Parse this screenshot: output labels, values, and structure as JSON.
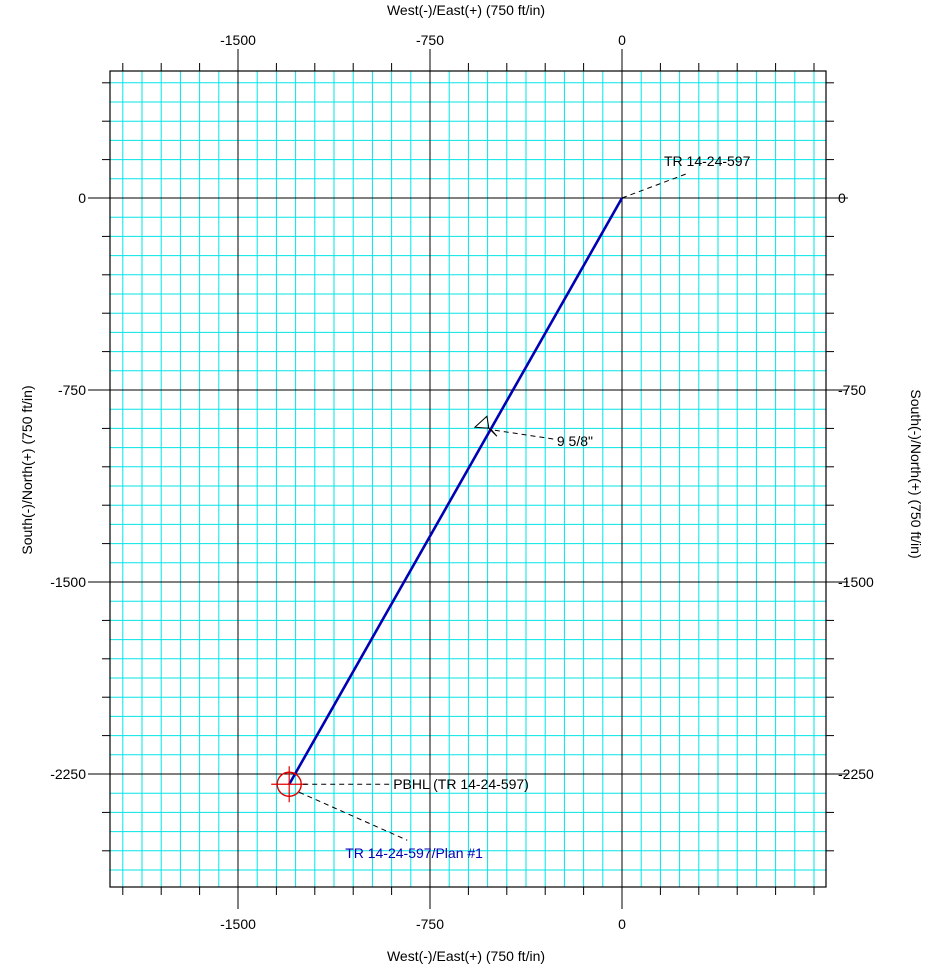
{
  "axis_titles": {
    "top": "West(-)/East(+) (750 ft/in)",
    "bottom": "West(-)/East(+) (750 ft/in)",
    "left": "South(-)/North(+) (750 ft/in)",
    "right": "South(-)/North(+) (750 ft/in)"
  },
  "colors": {
    "grid_minor": "#00e5e5",
    "grid_major": "#000000",
    "well_path": "#0000b4",
    "target": "#e00000",
    "plan_label": "#0000b4",
    "text": "#000000"
  },
  "annotations": {
    "well_name": "TR 14-24-597",
    "casing": "9 5/8\"",
    "pbhl": "PBHL (TR 14-24-597)",
    "plan": "TR 14-24-597/Plan #1"
  },
  "chart_data": {
    "type": "line",
    "title": "",
    "xlabel": "West(-)/East(+) (750 ft/in)",
    "ylabel": "South(-)/North(+) (750 ft/in)",
    "xlim": [
      -1960,
      800
    ],
    "ylim": [
      -2680,
      590
    ],
    "x_ticks": [
      -1500,
      -750,
      0
    ],
    "x_tick_labels": [
      "-1500",
      "-750",
      "0"
    ],
    "y_ticks": [
      0,
      -750,
      -1500,
      -2250
    ],
    "y_tick_labels": [
      "0",
      "-750",
      "-1500",
      "-2250"
    ],
    "minor_grid_step": 75,
    "grid": true,
    "series": [
      {
        "name": "TR 14-24-597/Plan #1",
        "x": [
          0,
          -1300
        ],
        "y": [
          0,
          -2290
        ]
      }
    ],
    "markers": [
      {
        "label": "9 5/8\"",
        "type": "casing",
        "x": -520,
        "y": -915
      },
      {
        "label": "PBHL (TR 14-24-597)",
        "type": "target",
        "x": -1300,
        "y": -2290
      }
    ]
  }
}
